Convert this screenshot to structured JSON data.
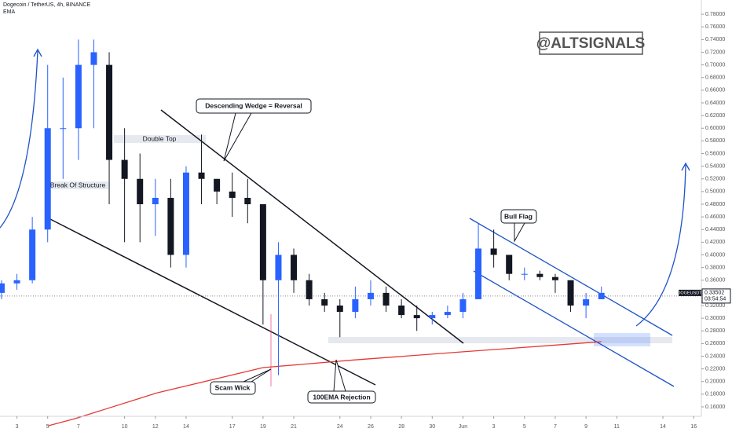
{
  "chart_data": {
    "type": "candlestick",
    "title": "Dogecoin / TetherUS, 4h, BINANCE",
    "watermark": "@ALTSIGNALS",
    "up_color": "#2962ff",
    "down_color": "#131722",
    "candles": {
      "x": [
        2,
        3,
        4,
        5,
        6,
        7,
        8,
        9,
        10,
        11,
        12,
        13,
        14,
        15,
        16,
        17,
        18,
        19,
        20,
        21,
        22,
        23,
        24,
        25,
        26,
        27,
        28,
        29,
        30,
        31,
        32,
        33,
        34,
        35,
        36,
        37,
        38,
        39,
        40,
        41
      ],
      "open": [
        0.34,
        0.355,
        0.36,
        0.44,
        0.6,
        0.6,
        0.7,
        0.7,
        0.55,
        0.52,
        0.48,
        0.49,
        0.4,
        0.53,
        0.52,
        0.5,
        0.49,
        0.48,
        0.36,
        0.4,
        0.36,
        0.33,
        0.32,
        0.31,
        0.33,
        0.34,
        0.32,
        0.305,
        0.3,
        0.305,
        0.31,
        0.33,
        0.41,
        0.4,
        0.37,
        0.37,
        0.365,
        0.36,
        0.32,
        0.33
      ],
      "high": [
        0.36,
        0.37,
        0.46,
        0.7,
        0.68,
        0.74,
        0.74,
        0.72,
        0.6,
        0.56,
        0.52,
        0.52,
        0.54,
        0.59,
        0.52,
        0.53,
        0.52,
        0.48,
        0.42,
        0.41,
        0.37,
        0.34,
        0.33,
        0.35,
        0.36,
        0.35,
        0.33,
        0.32,
        0.31,
        0.32,
        0.34,
        0.45,
        0.44,
        0.4,
        0.38,
        0.375,
        0.37,
        0.36,
        0.34,
        0.35
      ],
      "low": [
        0.33,
        0.345,
        0.355,
        0.42,
        0.52,
        0.55,
        0.6,
        0.48,
        0.42,
        0.42,
        0.43,
        0.38,
        0.38,
        0.48,
        0.48,
        0.46,
        0.45,
        0.29,
        0.21,
        0.34,
        0.32,
        0.31,
        0.27,
        0.3,
        0.32,
        0.31,
        0.3,
        0.28,
        0.29,
        0.3,
        0.3,
        0.33,
        0.38,
        0.36,
        0.36,
        0.36,
        0.34,
        0.31,
        0.3,
        0.33
      ],
      "close": [
        0.355,
        0.36,
        0.44,
        0.6,
        0.6,
        0.7,
        0.72,
        0.55,
        0.52,
        0.48,
        0.49,
        0.4,
        0.53,
        0.52,
        0.5,
        0.49,
        0.48,
        0.36,
        0.4,
        0.36,
        0.33,
        0.32,
        0.31,
        0.33,
        0.34,
        0.32,
        0.305,
        0.3,
        0.305,
        0.31,
        0.33,
        0.41,
        0.4,
        0.37,
        0.37,
        0.365,
        0.36,
        0.32,
        0.33,
        0.34
      ]
    },
    "ema": {
      "name": "EMA",
      "color": "#e53935",
      "x": [
        5,
        6.73,
        12.1,
        19,
        24.9,
        32,
        37.7,
        41
      ],
      "values": [
        0.13,
        0.141,
        0.182,
        0.222,
        0.234,
        0.247,
        0.257,
        0.263
      ]
    },
    "symbol": "DOGEUSDT",
    "last_price": 0.33502,
    "countdown": "03:54:54",
    "annotations": [
      "Descending Wedge = Reversal",
      "Double Top",
      "Break Of Structure",
      "Bull Flag",
      "Scam Wick",
      "100EMA Rejection"
    ],
    "xlim": [
      1.9,
      47.5
    ],
    "ylim": [
      0.16,
      0.8
    ],
    "xticks": [
      3,
      5,
      7,
      10,
      12,
      14,
      17,
      19,
      21,
      24,
      26,
      28,
      30,
      {
        "value": 32,
        "label": "Jun"
      },
      {
        "value": 34,
        "label": "3"
      },
      {
        "value": 36,
        "label": "5"
      },
      {
        "value": 38,
        "label": "7"
      },
      {
        "value": 40,
        "label": "9"
      },
      {
        "value": 42,
        "label": "11"
      },
      {
        "value": 45,
        "label": "14"
      },
      {
        "value": 47,
        "label": "16"
      }
    ],
    "yticks": [
      {
        "value": 0.16,
        "label": "0.16000"
      },
      {
        "value": 0.18,
        "label": "0.18000"
      },
      {
        "value": 0.2,
        "label": "0.20000"
      },
      {
        "value": 0.22,
        "label": "0.22000"
      },
      {
        "value": 0.24,
        "label": "0.24000"
      },
      {
        "value": 0.26,
        "label": "0.26000"
      },
      {
        "value": 0.28,
        "label": "0.28000"
      },
      {
        "value": 0.3,
        "label": "0.30000"
      },
      {
        "value": 0.32,
        "label": "0.32000"
      },
      {
        "value": 0.36,
        "label": "0.36000"
      },
      {
        "value": 0.38,
        "label": "0.38000"
      },
      {
        "value": 0.4,
        "label": "0.40000"
      },
      {
        "value": 0.42,
        "label": "0.42000"
      },
      {
        "value": 0.44,
        "label": "0.44000"
      },
      {
        "value": 0.46,
        "label": "0.46000"
      },
      {
        "value": 0.48,
        "label": "0.48000"
      },
      {
        "value": 0.5,
        "label": "0.50000"
      },
      {
        "value": 0.52,
        "label": "0.52000"
      },
      {
        "value": 0.54,
        "label": "0.54000"
      },
      {
        "value": 0.56,
        "label": "0.56000"
      },
      {
        "value": 0.58,
        "label": "0.58000"
      },
      {
        "value": 0.6,
        "label": "0.60000"
      },
      {
        "value": 0.62,
        "label": "0.62000"
      },
      {
        "value": 0.64,
        "label": "0.64000"
      },
      {
        "value": 0.66,
        "label": "0.66000"
      },
      {
        "value": 0.68,
        "label": "0.68000"
      },
      {
        "value": 0.7,
        "label": "0.70000"
      },
      {
        "value": 0.72,
        "label": "0.72000"
      },
      {
        "value": 0.74,
        "label": "0.74000"
      },
      {
        "value": 0.76,
        "label": "0.76000"
      },
      {
        "value": 0.78,
        "label": "0.78000"
      }
    ]
  }
}
